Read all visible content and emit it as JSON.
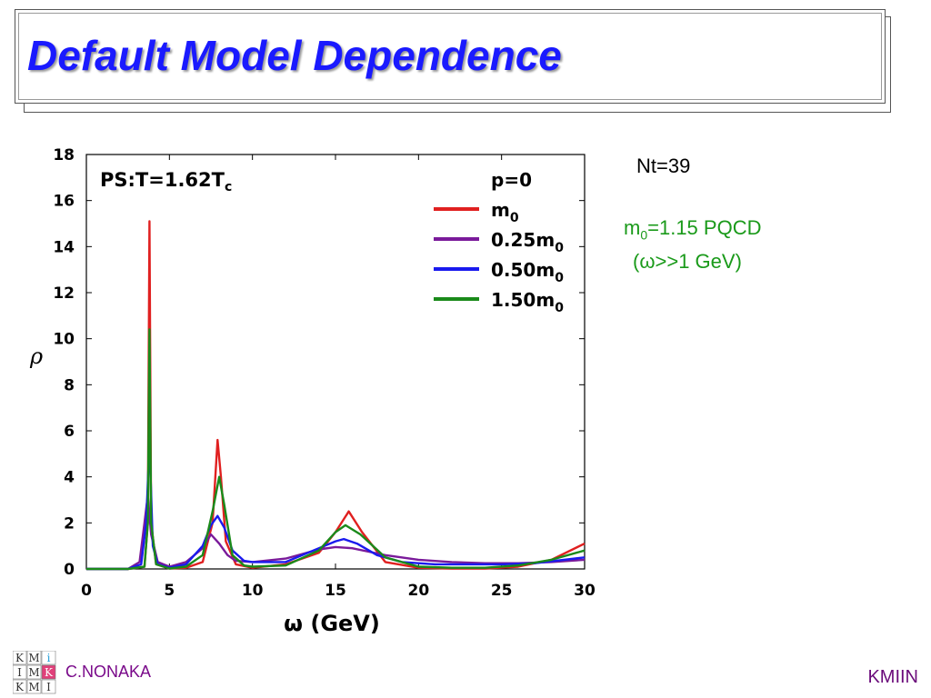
{
  "slide": {
    "title": "Default Model Dependence",
    "nt_label": "Nt=39",
    "note_prefix": "m",
    "note_sub": "0",
    "note_rest": "=1.15 PQCD",
    "note_line2": "(ω>>1 GeV)",
    "author": "C.NONAKA",
    "institute": "KMIIN",
    "logo_letters": [
      [
        "K",
        "M",
        "i"
      ],
      [
        "I",
        "M",
        "K"
      ],
      [
        "K",
        "M",
        "I"
      ]
    ]
  },
  "chart_data": {
    "type": "line",
    "title": "PS:T=1.62T",
    "title_sub": "c",
    "legend_title": "p=0",
    "xlabel": "ω (GeV)",
    "ylabel": "ρ",
    "xlim": [
      0,
      30
    ],
    "ylim": [
      0,
      18
    ],
    "xticks": [
      0,
      5,
      10,
      15,
      20,
      25,
      30
    ],
    "yticks": [
      0,
      2,
      4,
      6,
      8,
      10,
      12,
      14,
      16,
      18
    ],
    "grid": false,
    "legend_position": "top-right",
    "series": [
      {
        "name": "m0",
        "label_main": "m",
        "label_sub": "0",
        "color": "#e02020",
        "x": [
          0,
          2.5,
          3.5,
          3.7,
          3.8,
          3.9,
          4.2,
          5,
          6,
          7,
          7.6,
          7.9,
          8.1,
          8.4,
          9,
          10,
          12,
          14,
          15,
          15.8,
          16.6,
          18,
          20,
          22,
          24,
          26,
          28,
          30
        ],
        "y": [
          0,
          0,
          0.1,
          2,
          15.1,
          2,
          0.2,
          0.02,
          0.05,
          0.3,
          2,
          5.6,
          4,
          1.2,
          0.2,
          0.05,
          0.2,
          0.7,
          1.6,
          2.5,
          1.6,
          0.3,
          0.05,
          0.02,
          0.02,
          0.1,
          0.4,
          1.1
        ]
      },
      {
        "name": "0.25m0",
        "label_main": "0.25m",
        "label_sub": "0",
        "color": "#7a1a9a",
        "x": [
          0,
          2.5,
          3.2,
          3.5,
          3.7,
          3.9,
          4.3,
          5,
          6,
          7,
          7.5,
          8,
          8.5,
          9,
          10,
          12,
          14,
          15,
          16,
          17,
          18,
          20,
          22,
          24,
          26,
          28,
          30
        ],
        "y": [
          0,
          0,
          0.3,
          2,
          3.2,
          1.5,
          0.3,
          0.1,
          0.3,
          0.9,
          1.5,
          1.1,
          0.6,
          0.35,
          0.3,
          0.45,
          0.85,
          0.95,
          0.9,
          0.75,
          0.6,
          0.4,
          0.3,
          0.25,
          0.25,
          0.3,
          0.4
        ]
      },
      {
        "name": "0.50m0",
        "label_main": "0.50m",
        "label_sub": "0",
        "color": "#1a1aee",
        "x": [
          0,
          2.5,
          3.3,
          3.6,
          3.8,
          4,
          4.3,
          5,
          6,
          7,
          7.5,
          7.9,
          8.3,
          8.8,
          9.5,
          10,
          12,
          14,
          15,
          15.5,
          16.3,
          17.5,
          19,
          21,
          23,
          25,
          27,
          30
        ],
        "y": [
          0,
          0,
          0.2,
          2,
          5.5,
          1,
          0.2,
          0.05,
          0.2,
          1,
          1.9,
          2.3,
          1.8,
          0.8,
          0.35,
          0.3,
          0.3,
          0.9,
          1.2,
          1.3,
          1.1,
          0.6,
          0.3,
          0.2,
          0.2,
          0.2,
          0.25,
          0.5
        ]
      },
      {
        "name": "1.50m0",
        "label_main": "1.50m",
        "label_sub": "0",
        "color": "#1a8a1a",
        "x": [
          0,
          2.5,
          3.5,
          3.7,
          3.8,
          3.9,
          4.2,
          5,
          6,
          7,
          7.6,
          8,
          8.3,
          8.8,
          9.5,
          10,
          12,
          14,
          15,
          15.6,
          16.5,
          18,
          20,
          22,
          24,
          26,
          28,
          30
        ],
        "y": [
          0,
          0,
          0.1,
          2,
          10.4,
          2,
          0.2,
          0.02,
          0.1,
          0.6,
          2.5,
          4,
          2.8,
          0.6,
          0.15,
          0.1,
          0.15,
          0.8,
          1.6,
          1.9,
          1.5,
          0.5,
          0.1,
          0.05,
          0.05,
          0.15,
          0.4,
          0.8
        ]
      }
    ]
  }
}
